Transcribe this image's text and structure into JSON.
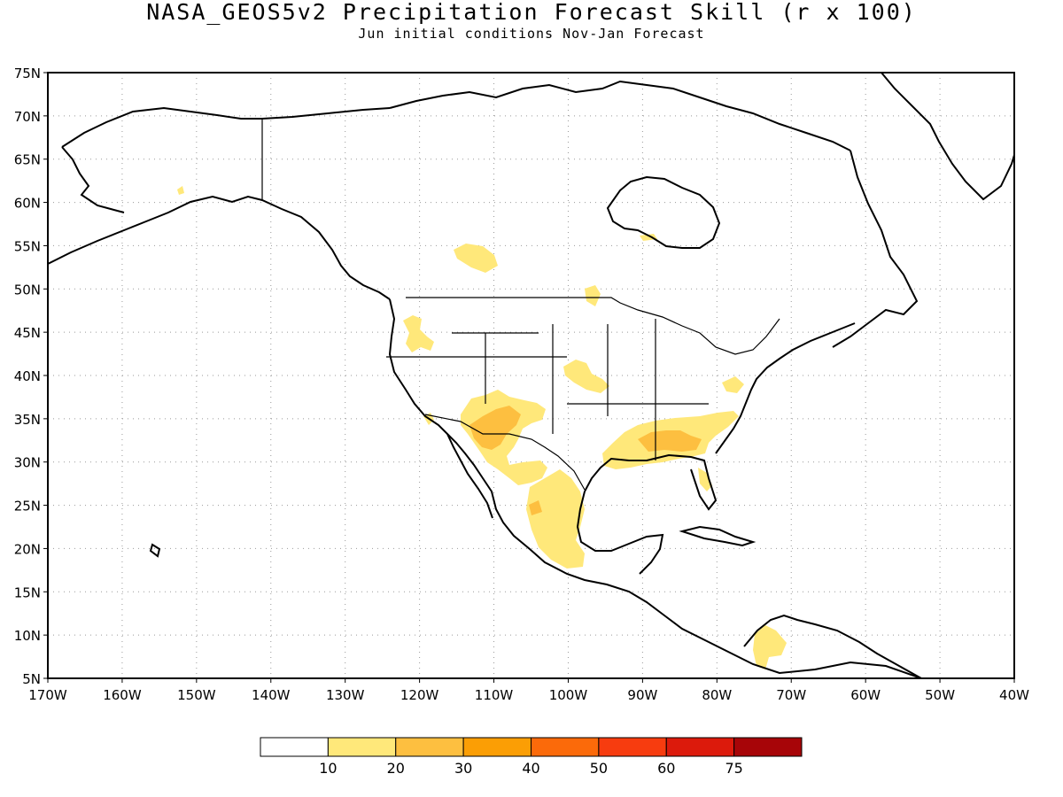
{
  "title": "NASA_GEOS5v2 Precipitation Forecast Skill (r x 100)",
  "subtitle": "Jun initial conditions  Nov-Jan Forecast",
  "map": {
    "region": "North America",
    "lon_range": [
      -170,
      -40
    ],
    "lat_range": [
      5,
      75
    ],
    "grid": "dotted",
    "lat_labels": [
      "75N",
      "70N",
      "65N",
      "60N",
      "55N",
      "50N",
      "45N",
      "40N",
      "35N",
      "30N",
      "25N",
      "20N",
      "15N",
      "10N",
      "5N"
    ],
    "lon_labels": [
      "170W",
      "160W",
      "150W",
      "140W",
      "130W",
      "120W",
      "110W",
      "100W",
      "90W",
      "80W",
      "70W",
      "60W",
      "50W",
      "40W"
    ]
  },
  "colorbar": {
    "labels": [
      "10",
      "20",
      "30",
      "40",
      "50",
      "60",
      "75"
    ],
    "colors": [
      "#ffffff",
      "#ffe87a",
      "#fdbf40",
      "#fb9e05",
      "#fb6a0a",
      "#f73c0f",
      "#dc1a0c",
      "#a70508"
    ]
  },
  "skill_regions": [
    {
      "name": "Southwest US / Northwest Mexico",
      "level": "10-30"
    },
    {
      "name": "Southeast US Gulf Coast",
      "level": "10-30"
    },
    {
      "name": "Central Mexico",
      "level": "10-30"
    },
    {
      "name": "Central Plains",
      "level": "10-20"
    },
    {
      "name": "Pacific Northwest",
      "level": "10-20"
    },
    {
      "name": "Western Canada",
      "level": "10-20"
    },
    {
      "name": "Northern South America",
      "level": "10-20"
    }
  ]
}
